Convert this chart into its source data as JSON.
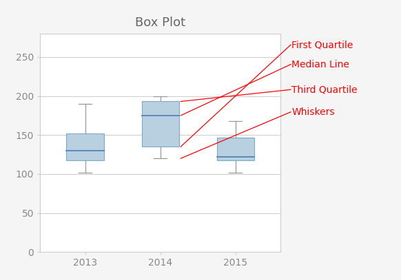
{
  "title": "Box Plot",
  "categories": [
    "2013",
    "2014",
    "2015"
  ],
  "boxes": [
    {
      "q1": 118,
      "median": 130,
      "q3": 152,
      "whisker_low": 102,
      "whisker_high": 190
    },
    {
      "q1": 135,
      "median": 175,
      "q3": 193,
      "whisker_low": 120,
      "whisker_high": 200
    },
    {
      "q1": 118,
      "median": 122,
      "q3": 147,
      "whisker_low": 102,
      "whisker_high": 168
    }
  ],
  "ylim": [
    0,
    280
  ],
  "yticks": [
    0,
    50,
    100,
    150,
    200,
    250
  ],
  "box_facecolor": "#b8d0e0",
  "box_edgecolor": "#7aaac8",
  "median_color": "#4a7fb5",
  "whisker_color": "#999999",
  "cap_color": "#999999",
  "title_color": "#666666",
  "title_fontsize": 13,
  "annotation_labels": [
    "First Quartile",
    "Median Line",
    "Third Quartile",
    "Whiskers"
  ],
  "annotation_color": "red",
  "annotation_fontsize": 10,
  "background_color": "#f5f5f5",
  "plot_bg_color": "#ffffff",
  "grid_color": "#cccccc",
  "tick_color": "#888888"
}
